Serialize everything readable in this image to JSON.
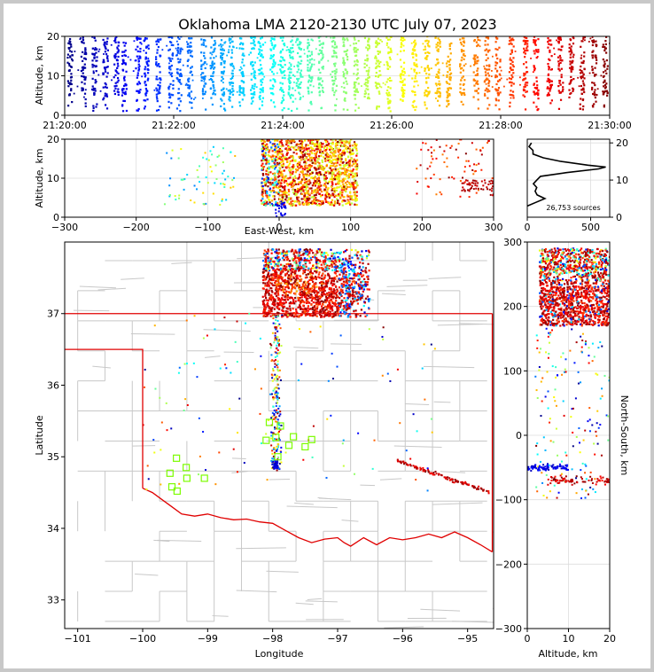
{
  "chart_data": [
    {
      "id": "time_height",
      "type": "scatter",
      "title": "Oklahoma LMA 2120-2130 UTC July 07, 2023",
      "xlabel": "",
      "ylabel": "Altitude, km",
      "xlim": [
        "21:20:00",
        "21:30:00"
      ],
      "ylim": [
        0,
        20
      ],
      "xticks": [
        "21:20:00",
        "21:22:00",
        "21:24:00",
        "21:26:00",
        "21:28:00",
        "21:30:00"
      ],
      "yticks": [
        0,
        10,
        20
      ],
      "colormap": "jet (by time)",
      "flash_bursts_minutes": [
        0.1,
        0.35,
        0.55,
        0.75,
        0.95,
        1.1,
        1.35,
        1.5,
        1.72,
        1.95,
        2.1,
        2.3,
        2.55,
        2.72,
        2.9,
        3.05,
        3.25,
        3.45,
        3.6,
        3.82,
        4.0,
        4.15,
        4.3,
        4.5,
        4.7,
        4.95,
        5.15,
        5.35,
        5.55,
        5.75,
        5.95,
        6.2,
        6.42,
        6.65,
        6.85,
        7.05,
        7.3,
        7.55,
        7.75,
        7.95,
        8.2,
        8.45,
        8.65,
        8.9,
        9.1,
        9.3,
        9.5,
        9.72,
        9.92
      ]
    },
    {
      "id": "east_west_altitude",
      "type": "scatter",
      "xlabel": "East-West, km",
      "ylabel": "Altitude, km",
      "xlim": [
        -300,
        300
      ],
      "ylim": [
        0,
        20
      ],
      "xticks": [
        -300,
        -200,
        -100,
        0,
        100,
        200,
        300
      ],
      "yticks": [
        0,
        10,
        20
      ],
      "core_x_range_km": [
        -25,
        110
      ],
      "core_alt_range_km": [
        3,
        20
      ]
    },
    {
      "id": "altitude_histogram",
      "type": "line",
      "annotation": "26,753 sources",
      "xlim": [
        0,
        650
      ],
      "ylim": [
        0,
        21
      ],
      "xticks": [
        0,
        500
      ],
      "yticks": [
        0,
        10,
        20
      ],
      "profile": [
        [
          0,
          3
        ],
        [
          60,
          4
        ],
        [
          140,
          5
        ],
        [
          90,
          6
        ],
        [
          75,
          7
        ],
        [
          60,
          8
        ],
        [
          50,
          9
        ],
        [
          70,
          10
        ],
        [
          110,
          11
        ],
        [
          300,
          12
        ],
        [
          560,
          13
        ],
        [
          620,
          13.5
        ],
        [
          480,
          14
        ],
        [
          260,
          15
        ],
        [
          120,
          16
        ],
        [
          50,
          17
        ],
        [
          30,
          18
        ],
        [
          25,
          19
        ],
        [
          20,
          20
        ]
      ]
    },
    {
      "id": "plan_view",
      "type": "scatter",
      "xlabel": "Longitude",
      "ylabel": "Latitude",
      "xlim": [
        -101.2,
        -94.6
      ],
      "ylim": [
        32.6,
        38.0
      ],
      "xticks": [
        -101,
        -100,
        -99,
        -98,
        -97,
        -96,
        -95
      ],
      "yticks": [
        33,
        34,
        35,
        36,
        37
      ],
      "stations": [
        [
          -99.48,
          34.98
        ],
        [
          -99.33,
          34.85
        ],
        [
          -99.58,
          34.77
        ],
        [
          -99.05,
          34.7
        ],
        [
          -99.55,
          34.58
        ],
        [
          -99.47,
          34.52
        ],
        [
          -99.32,
          34.7
        ],
        [
          -98.05,
          35.48
        ],
        [
          -97.88,
          35.43
        ],
        [
          -98.1,
          35.23
        ],
        [
          -97.95,
          35.27
        ],
        [
          -97.75,
          35.16
        ],
        [
          -97.68,
          35.28
        ],
        [
          -97.5,
          35.14
        ],
        [
          -97.4,
          35.24
        ],
        [
          -97.92,
          35.0
        ]
      ]
    },
    {
      "id": "north_south_altitude",
      "type": "scatter",
      "xlabel": "Altitude, km",
      "ylabel": "North-South, km",
      "xlim": [
        0,
        20
      ],
      "ylim": [
        -300,
        300
      ],
      "xticks": [
        0,
        10,
        20
      ],
      "yticks": [
        -300,
        -200,
        -100,
        0,
        100,
        200,
        300
      ]
    }
  ]
}
